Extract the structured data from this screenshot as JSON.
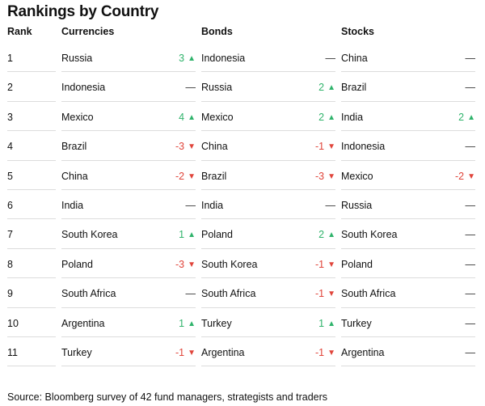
{
  "title": "Rankings by Country",
  "columns": {
    "rank": "Rank",
    "currencies": "Currencies",
    "bonds": "Bonds",
    "stocks": "Stocks"
  },
  "rows": [
    {
      "rank": "1",
      "currency": "Russia",
      "currency_change": "3",
      "currency_dir": "up",
      "bond": "Indonesia",
      "bond_change": "—",
      "bond_dir": "flat",
      "stock": "China",
      "stock_change": "—",
      "stock_dir": "flat"
    },
    {
      "rank": "2",
      "currency": "Indonesia",
      "currency_change": "—",
      "currency_dir": "flat",
      "bond": "Russia",
      "bond_change": "2",
      "bond_dir": "up",
      "stock": "Brazil",
      "stock_change": "—",
      "stock_dir": "flat"
    },
    {
      "rank": "3",
      "currency": "Mexico",
      "currency_change": "4",
      "currency_dir": "up",
      "bond": "Mexico",
      "bond_change": "2",
      "bond_dir": "up",
      "stock": "India",
      "stock_change": "2",
      "stock_dir": "up"
    },
    {
      "rank": "4",
      "currency": "Brazil",
      "currency_change": "-3",
      "currency_dir": "down",
      "bond": "China",
      "bond_change": "-1",
      "bond_dir": "down",
      "stock": "Indonesia",
      "stock_change": "—",
      "stock_dir": "flat"
    },
    {
      "rank": "5",
      "currency": "China",
      "currency_change": "-2",
      "currency_dir": "down",
      "bond": "Brazil",
      "bond_change": "-3",
      "bond_dir": "down",
      "stock": "Mexico",
      "stock_change": "-2",
      "stock_dir": "down"
    },
    {
      "rank": "6",
      "currency": "India",
      "currency_change": "—",
      "currency_dir": "flat",
      "bond": "India",
      "bond_change": "—",
      "bond_dir": "flat",
      "stock": "Russia",
      "stock_change": "—",
      "stock_dir": "flat"
    },
    {
      "rank": "7",
      "currency": "South Korea",
      "currency_change": "1",
      "currency_dir": "up",
      "bond": "Poland",
      "bond_change": "2",
      "bond_dir": "up",
      "stock": "South Korea",
      "stock_change": "—",
      "stock_dir": "flat"
    },
    {
      "rank": "8",
      "currency": "Poland",
      "currency_change": "-3",
      "currency_dir": "down",
      "bond": "South Korea",
      "bond_change": "-1",
      "bond_dir": "down",
      "stock": "Poland",
      "stock_change": "—",
      "stock_dir": "flat"
    },
    {
      "rank": "9",
      "currency": "South Africa",
      "currency_change": "—",
      "currency_dir": "flat",
      "bond": "South Africa",
      "bond_change": "-1",
      "bond_dir": "down",
      "stock": "South Africa",
      "stock_change": "—",
      "stock_dir": "flat"
    },
    {
      "rank": "10",
      "currency": "Argentina",
      "currency_change": "1",
      "currency_dir": "up",
      "bond": "Turkey",
      "bond_change": "1",
      "bond_dir": "up",
      "stock": "Turkey",
      "stock_change": "—",
      "stock_dir": "flat"
    },
    {
      "rank": "11",
      "currency": "Turkey",
      "currency_change": "-1",
      "currency_dir": "down",
      "bond": "Argentina",
      "bond_change": "-1",
      "bond_dir": "down",
      "stock": "Argentina",
      "stock_change": "—",
      "stock_dir": "flat"
    }
  ],
  "colors": {
    "up": "#2fb36b",
    "down": "#e0443a",
    "divider": "#dcdcdc"
  },
  "icons": {
    "up": "triangle-up-icon",
    "down": "triangle-down-icon"
  },
  "source": "Source: Bloomberg survey of 42 fund managers, strategists and traders"
}
